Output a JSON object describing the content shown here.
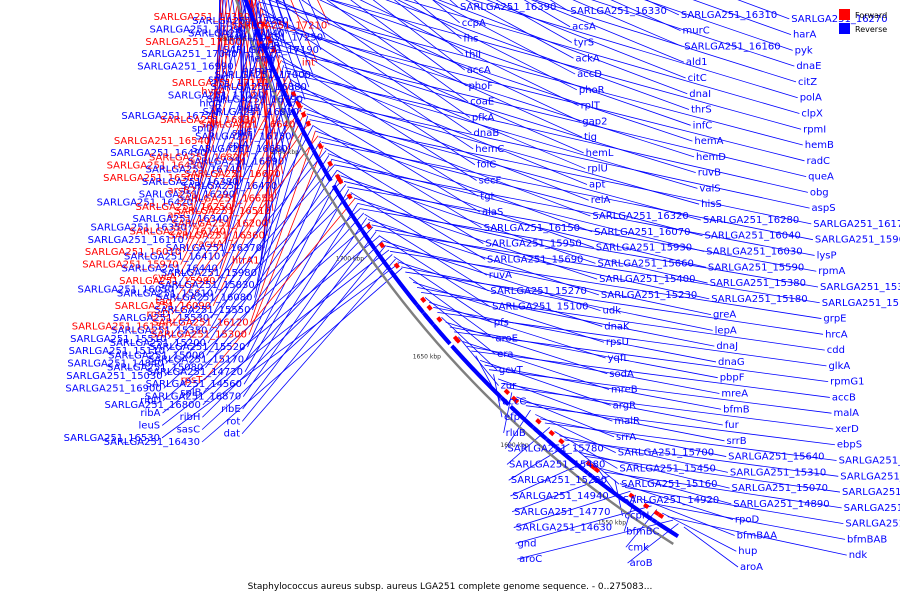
{
  "caption": "Staphylococcus aureus subsp. aureus LGA251 complete genome sequence. - 0..275083...",
  "legend": [
    {
      "label": "Forward",
      "color": "#ff0000"
    },
    {
      "label": "Reverse",
      "color": "#0000ff"
    }
  ],
  "colors": {
    "forward": "#ff0000",
    "reverse": "#0000ff",
    "backbone": "#7f7f7f"
  },
  "ticks": [
    "1900 kbp",
    "1850 kbp",
    "1800 kbp",
    "1750 kbp",
    "1700 kbp",
    "1650 kbp",
    "1600 kbp",
    "1550 kbp"
  ],
  "labels": [
    {
      "t": "SARLGA251_17330",
      "s": "f"
    },
    {
      "t": "SARLGA251_17260",
      "s": "r"
    },
    {
      "t": "SARLGA251_17210",
      "s": "f"
    },
    {
      "t": "SARLGA251_17290",
      "s": "r"
    },
    {
      "t": "SARLGA251_17140",
      "s": "r"
    },
    {
      "t": "SARLGA251_17250",
      "s": "r"
    },
    {
      "t": "SARLGA251_17100",
      "s": "f"
    },
    {
      "t": "yhcR",
      "s": "r"
    },
    {
      "t": "SARLGA251_17190",
      "s": "r"
    },
    {
      "t": "SARLGA251_17040",
      "s": "r"
    },
    {
      "t": "hemY",
      "s": "r"
    },
    {
      "t": "int",
      "s": "f"
    },
    {
      "t": "SARLGA251_16990",
      "s": "r"
    },
    {
      "t": "hemH",
      "s": "r"
    },
    {
      "t": "SARLGA251_17000",
      "s": "r"
    },
    {
      "t": "splC",
      "s": "r"
    },
    {
      "t": "SARLGA251_17110",
      "s": "f"
    },
    {
      "t": "SARLGA251_16880",
      "s": "r"
    },
    {
      "t": "hysA",
      "s": "f"
    },
    {
      "t": "SARLGA251_17020",
      "s": "r"
    },
    {
      "t": "SARLGA251_16790",
      "s": "r"
    },
    {
      "t": "hlgA",
      "s": "r"
    },
    {
      "t": "hlgB",
      "s": "r"
    },
    {
      "t": "SARLGA251_16910",
      "s": "r"
    },
    {
      "t": "SARLGA251_16720",
      "s": "r"
    },
    {
      "t": "SARLGA251_16830",
      "s": "f"
    },
    {
      "t": "SARLGA251_16640",
      "s": "f"
    },
    {
      "t": "splD",
      "s": "r"
    },
    {
      "t": "splE",
      "s": "r"
    },
    {
      "t": "SARLGA251_16730",
      "s": "r"
    },
    {
      "t": "SARLGA251_16540",
      "s": "f"
    },
    {
      "t": "splA",
      "s": "r"
    },
    {
      "t": "SARLGA251_16680",
      "s": "r"
    },
    {
      "t": "SARLGA251_16490",
      "s": "r"
    },
    {
      "t": "SARLGA251_16820",
      "s": "f"
    },
    {
      "t": "SARLGA251_16590",
      "s": "r"
    },
    {
      "t": "SARLGA251_16450",
      "s": "f"
    },
    {
      "t": "SARLGA251_16740",
      "s": "r"
    },
    {
      "t": "SARLGA251_16670",
      "s": "f"
    },
    {
      "t": "SARLGA251_16500",
      "s": "f"
    },
    {
      "t": "SARLGA251_16380",
      "s": "r"
    },
    {
      "t": "SARLGA251_16470",
      "s": "r"
    },
    {
      "t": "arsB2",
      "s": "f"
    },
    {
      "t": "SARLGA251_16290",
      "s": "r"
    },
    {
      "t": "SARLGA251_16650",
      "s": "f"
    },
    {
      "t": "SARLGA251_16420",
      "s": "r"
    },
    {
      "t": "SARLGA251_16250",
      "s": "f"
    },
    {
      "t": "SARLGA251_16510",
      "s": "f"
    },
    {
      "t": "arsC",
      "s": "f"
    },
    {
      "t": "SARLGA251_16340",
      "s": "r"
    },
    {
      "t": "SARLGA251_16200",
      "s": "f"
    },
    {
      "t": "SARLGA251_16350",
      "s": "r"
    },
    {
      "t": "SARLGA251_16140",
      "s": "f"
    },
    {
      "t": "SARLGA251_16360",
      "s": "f"
    },
    {
      "t": "SARLGA251_16110",
      "s": "r"
    },
    {
      "t": "acuA",
      "s": "f"
    },
    {
      "t": "SARLGA251_16370",
      "s": "r"
    },
    {
      "t": "SARLGA251_16010",
      "s": "f"
    },
    {
      "t": "SARLGA251_16410",
      "s": "r"
    },
    {
      "t": "htrA1",
      "s": "f"
    },
    {
      "t": "SARLGA251_15970",
      "s": "f"
    },
    {
      "t": "SARLGA251_16440",
      "s": "r"
    },
    {
      "t": "SARLGA251_15980",
      "s": "r"
    },
    {
      "t": "cycA",
      "s": "f"
    },
    {
      "t": "SARLGA251_15990",
      "s": "f"
    },
    {
      "t": "SARLGA251_15830",
      "s": "r"
    },
    {
      "t": "SARLGA251_16050",
      "s": "r"
    },
    {
      "t": "SARLGA251_15810",
      "s": "r"
    },
    {
      "t": "SARLGA251_16080",
      "s": "r"
    },
    {
      "t": "tag",
      "s": "f"
    },
    {
      "t": "SARLGA251_16090",
      "s": "f"
    },
    {
      "t": "SARLGA251_15550",
      "s": "r"
    },
    {
      "t": "rpsD",
      "s": "f"
    },
    {
      "t": "SARLGA251_15530",
      "s": "r"
    },
    {
      "t": "SARLGA251_16120",
      "s": "f"
    },
    {
      "t": "SARLGA251_16130",
      "s": "f"
    },
    {
      "t": "SARLGA251_15350",
      "s": "r"
    },
    {
      "t": "SARLGA251_15300",
      "s": "f"
    },
    {
      "t": "SARLGA251_15510",
      "s": "r"
    },
    {
      "t": "SARLGA251_15200",
      "s": "r"
    },
    {
      "t": "SARLGA251_15520",
      "s": "r"
    },
    {
      "t": "SARLGA251_15110",
      "s": "r"
    },
    {
      "t": "SARLGA251_15000",
      "s": "r"
    },
    {
      "t": "SARLGA251_15170",
      "s": "r"
    },
    {
      "t": "SARLGA251_14840",
      "s": "r"
    },
    {
      "t": "SARLGA251_15080",
      "s": "r"
    },
    {
      "t": "SARLGA251_14720",
      "s": "r"
    },
    {
      "t": "SARLGA251_15030",
      "s": "r"
    },
    {
      "t": "rpsT",
      "s": "f"
    },
    {
      "t": "SARLGA251_14560",
      "s": "r"
    },
    {
      "t": "SARLGA251_16900",
      "s": "r"
    },
    {
      "t": "splB",
      "s": "r"
    },
    {
      "t": "SARLGA251_16870",
      "s": "r"
    },
    {
      "t": "ribD",
      "s": "r"
    },
    {
      "t": "SARLGA251_16800",
      "s": "r"
    },
    {
      "t": "ribE",
      "s": "r"
    },
    {
      "t": "ribA",
      "s": "r"
    },
    {
      "t": "ribH",
      "s": "r"
    },
    {
      "t": "rot",
      "s": "r"
    },
    {
      "t": "leuS",
      "s": "r"
    },
    {
      "t": "sasC",
      "s": "r"
    },
    {
      "t": "dat",
      "s": "r"
    },
    {
      "t": "SARLGA251_16530",
      "s": "r"
    },
    {
      "t": "SARLGA251_16430",
      "s": "r"
    },
    {
      "t": "SARLGA251_16390",
      "s": "r"
    },
    {
      "t": "SARLGA251_16330",
      "s": "r"
    },
    {
      "t": "SARLGA251_16310",
      "s": "r"
    },
    {
      "t": "SARLGA251_16270",
      "s": "r"
    },
    {
      "t": "ccpA",
      "s": "r"
    },
    {
      "t": "acsA",
      "s": "r"
    },
    {
      "t": "murC",
      "s": "r"
    },
    {
      "t": "harA",
      "s": "r"
    },
    {
      "t": "fhs",
      "s": "r"
    },
    {
      "t": "tyrS",
      "s": "r"
    },
    {
      "t": "SARLGA251_16160",
      "s": "r"
    },
    {
      "t": "pyk",
      "s": "r"
    },
    {
      "t": "thiI",
      "s": "r"
    },
    {
      "t": "ackA",
      "s": "r"
    },
    {
      "t": "ald1",
      "s": "r"
    },
    {
      "t": "dnaE",
      "s": "r"
    },
    {
      "t": "accA",
      "s": "r"
    },
    {
      "t": "accD",
      "s": "r"
    },
    {
      "t": "citC",
      "s": "r"
    },
    {
      "t": "citZ",
      "s": "r"
    },
    {
      "t": "phoF",
      "s": "r"
    },
    {
      "t": "phoR",
      "s": "r"
    },
    {
      "t": "dnaI",
      "s": "r"
    },
    {
      "t": "polA",
      "s": "r"
    },
    {
      "t": "coaE",
      "s": "r"
    },
    {
      "t": "rplT",
      "s": "r"
    },
    {
      "t": "thrS",
      "s": "r"
    },
    {
      "t": "clpX",
      "s": "r"
    },
    {
      "t": "pfkA",
      "s": "r"
    },
    {
      "t": "gap2",
      "s": "r"
    },
    {
      "t": "infC",
      "s": "r"
    },
    {
      "t": "rpmI",
      "s": "r"
    },
    {
      "t": "dnaB",
      "s": "r"
    },
    {
      "t": "tig",
      "s": "r"
    },
    {
      "t": "hemA",
      "s": "r"
    },
    {
      "t": "hemB",
      "s": "r"
    },
    {
      "t": "hemC",
      "s": "r"
    },
    {
      "t": "hemL",
      "s": "r"
    },
    {
      "t": "hemD",
      "s": "r"
    },
    {
      "t": "radC",
      "s": "r"
    },
    {
      "t": "folC",
      "s": "r"
    },
    {
      "t": "rplU",
      "s": "r"
    },
    {
      "t": "ruvB",
      "s": "r"
    },
    {
      "t": "queA",
      "s": "r"
    },
    {
      "t": "secF",
      "s": "r"
    },
    {
      "t": "apt",
      "s": "r"
    },
    {
      "t": "valS",
      "s": "r"
    },
    {
      "t": "obg",
      "s": "r"
    },
    {
      "t": "tgt",
      "s": "r"
    },
    {
      "t": "relA",
      "s": "r"
    },
    {
      "t": "hisS",
      "s": "r"
    },
    {
      "t": "aspS",
      "s": "r"
    },
    {
      "t": "alaS",
      "s": "r"
    },
    {
      "t": "SARLGA251_16320",
      "s": "r"
    },
    {
      "t": "SARLGA251_16280",
      "s": "r"
    },
    {
      "t": "SARLGA251_16170",
      "s": "r"
    },
    {
      "t": "SARLGA251_16150",
      "s": "r"
    },
    {
      "t": "SARLGA251_16070",
      "s": "r"
    },
    {
      "t": "SARLGA251_16040",
      "s": "r"
    },
    {
      "t": "SARLGA251_15960",
      "s": "r"
    },
    {
      "t": "SARLGA251_15950",
      "s": "r"
    },
    {
      "t": "SARLGA251_15930",
      "s": "r"
    },
    {
      "t": "SARLGA251_16030",
      "s": "r"
    },
    {
      "t": "lysP",
      "s": "r"
    },
    {
      "t": "SARLGA251_15690",
      "s": "r"
    },
    {
      "t": "SARLGA251_15660",
      "s": "r"
    },
    {
      "t": "SARLGA251_15590",
      "s": "r"
    },
    {
      "t": "rpmA",
      "s": "r"
    },
    {
      "t": "ruvA",
      "s": "r"
    },
    {
      "t": "SARLGA251_15400",
      "s": "r"
    },
    {
      "t": "SARLGA251_15380",
      "s": "r"
    },
    {
      "t": "SARLGA251_15340",
      "s": "r"
    },
    {
      "t": "SARLGA251_15270",
      "s": "r"
    },
    {
      "t": "SARLGA251_15230",
      "s": "r"
    },
    {
      "t": "SARLGA251_15180",
      "s": "r"
    },
    {
      "t": "SARLGA251_15150",
      "s": "r"
    },
    {
      "t": "SARLGA251_15100",
      "s": "r"
    },
    {
      "t": "udk",
      "s": "r"
    },
    {
      "t": "greA",
      "s": "r"
    },
    {
      "t": "grpE",
      "s": "r"
    },
    {
      "t": "pfs",
      "s": "r"
    },
    {
      "t": "dnaK",
      "s": "r"
    },
    {
      "t": "lepA",
      "s": "r"
    },
    {
      "t": "hrcA",
      "s": "r"
    },
    {
      "t": "aroE",
      "s": "r"
    },
    {
      "t": "rpsU",
      "s": "r"
    },
    {
      "t": "dnaJ",
      "s": "r"
    },
    {
      "t": "cdd",
      "s": "r"
    },
    {
      "t": "era",
      "s": "r"
    },
    {
      "t": "yqfL",
      "s": "r"
    },
    {
      "t": "dnaG",
      "s": "r"
    },
    {
      "t": "glkA",
      "s": "r"
    },
    {
      "t": "gcvT",
      "s": "r"
    },
    {
      "t": "sodA",
      "s": "r"
    },
    {
      "t": "pbpF",
      "s": "r"
    },
    {
      "t": "rpmG1",
      "s": "r"
    },
    {
      "t": "zur",
      "s": "r"
    },
    {
      "t": "mreB",
      "s": "r"
    },
    {
      "t": "mreA",
      "s": "r"
    },
    {
      "t": "accB",
      "s": "r"
    },
    {
      "t": "accC",
      "s": "r"
    },
    {
      "t": "argR",
      "s": "r"
    },
    {
      "t": "bfmB",
      "s": "r"
    },
    {
      "t": "malA",
      "s": "r"
    },
    {
      "t": "efp",
      "s": "r"
    },
    {
      "t": "malR",
      "s": "r"
    },
    {
      "t": "fur",
      "s": "r"
    },
    {
      "t": "xerD",
      "s": "r"
    },
    {
      "t": "rluB",
      "s": "r"
    },
    {
      "t": "srrA",
      "s": "r"
    },
    {
      "t": "srrB",
      "s": "r"
    },
    {
      "t": "ebpS",
      "s": "r"
    },
    {
      "t": "SARLGA251_15780",
      "s": "r"
    },
    {
      "t": "SARLGA251_15700",
      "s": "r"
    },
    {
      "t": "SARLGA251_15640",
      "s": "r"
    },
    {
      "t": "SARLGA251_15500",
      "s": "r"
    },
    {
      "t": "SARLGA251_15480",
      "s": "r"
    },
    {
      "t": "SARLGA251_15450",
      "s": "r"
    },
    {
      "t": "SARLGA251_15310",
      "s": "r"
    },
    {
      "t": "SARLGA251_15240",
      "s": "r"
    },
    {
      "t": "SARLGA251_15220",
      "s": "r"
    },
    {
      "t": "SARLGA251_15160",
      "s": "r"
    },
    {
      "t": "SARLGA251_15070",
      "s": "r"
    },
    {
      "t": "SARLGA251_15020",
      "s": "r"
    },
    {
      "t": "SARLGA251_14940",
      "s": "r"
    },
    {
      "t": "SARLGA251_14920",
      "s": "r"
    },
    {
      "t": "SARLGA251_14890",
      "s": "r"
    },
    {
      "t": "SARLGA251_14820",
      "s": "r"
    },
    {
      "t": "SARLGA251_14770",
      "s": "r"
    },
    {
      "t": "ccpN",
      "s": "r"
    },
    {
      "t": "rpoD",
      "s": "r"
    },
    {
      "t": "SARLGA251_14640",
      "s": "r"
    },
    {
      "t": "SARLGA251_14630",
      "s": "r"
    },
    {
      "t": "bfmBC",
      "s": "r"
    },
    {
      "t": "bfmBAA",
      "s": "r"
    },
    {
      "t": "bfmBAB",
      "s": "r"
    },
    {
      "t": "gnd",
      "s": "r"
    },
    {
      "t": "cmk",
      "s": "r"
    },
    {
      "t": "hup",
      "s": "r"
    },
    {
      "t": "ndk",
      "s": "r"
    },
    {
      "t": "aroC",
      "s": "r"
    },
    {
      "t": "aroB",
      "s": "r"
    },
    {
      "t": "aroA",
      "s": "r"
    }
  ]
}
